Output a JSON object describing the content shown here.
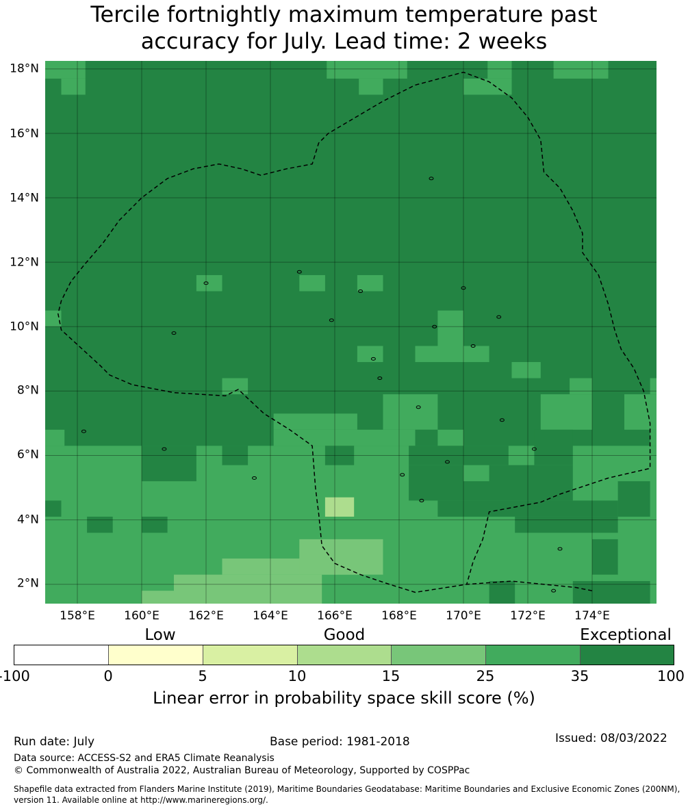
{
  "title_line1": "Tercile fortnightly maximum temperature past",
  "title_line2": "accuracy for July. Lead time: 2 weeks",
  "map": {
    "lat_labels": [
      "18°N",
      "16°N",
      "14°N",
      "12°N",
      "10°N",
      "8°N",
      "6°N",
      "4°N",
      "2°N"
    ],
    "lon_labels": [
      "158°E",
      "160°E",
      "162°E",
      "164°E",
      "166°E",
      "168°E",
      "170°E",
      "172°E",
      "174°E"
    ],
    "extent": {
      "lon_min": 157,
      "lon_max": 176,
      "lat_min": 1.4,
      "lat_max": 18.25
    },
    "grid_lons": [
      158,
      160,
      162,
      164,
      166,
      168,
      170,
      172,
      174
    ],
    "grid_lats": [
      18,
      16,
      14,
      12,
      10,
      8,
      6,
      4,
      2
    ],
    "region_colors": {
      "exceptional": "#238443",
      "35": "#41ab5d",
      "25": "#78c679",
      "15": "#addd8e"
    },
    "boundary_eez": [
      [
        174,
        1.8
      ],
      [
        173.5,
        1.9
      ],
      [
        172.5,
        2.0
      ],
      [
        171.5,
        2.1
      ],
      [
        170.1,
        2.0
      ],
      [
        168.5,
        1.75
      ],
      [
        167.7,
        2.0
      ],
      [
        166.8,
        2.3
      ],
      [
        166.0,
        2.65
      ],
      [
        165.6,
        3.2
      ],
      [
        165.5,
        4.2
      ],
      [
        165.4,
        5.0
      ],
      [
        165.3,
        6.3
      ],
      [
        164.6,
        6.8
      ],
      [
        163.8,
        7.3
      ],
      [
        163.0,
        8.05
      ],
      [
        162.6,
        7.85
      ],
      [
        161.0,
        7.95
      ],
      [
        159.7,
        8.2
      ],
      [
        159.0,
        8.5
      ],
      [
        158.7,
        8.8
      ],
      [
        157.5,
        9.9
      ],
      [
        157.4,
        10.4
      ],
      [
        157.5,
        10.8
      ],
      [
        157.8,
        11.4
      ],
      [
        158.2,
        11.9
      ],
      [
        158.8,
        12.6
      ],
      [
        159.3,
        13.3
      ],
      [
        160.0,
        14.0
      ],
      [
        160.8,
        14.6
      ],
      [
        161.6,
        14.9
      ],
      [
        162.4,
        15.05
      ],
      [
        163.1,
        14.9
      ],
      [
        163.7,
        14.7
      ],
      [
        164.5,
        14.9
      ],
      [
        165.3,
        15.05
      ],
      [
        165.5,
        15.7
      ],
      [
        165.8,
        16.0
      ],
      [
        167.5,
        17.0
      ],
      [
        168.5,
        17.5
      ],
      [
        170.0,
        17.9
      ],
      [
        170.8,
        17.6
      ],
      [
        171.5,
        17.1
      ],
      [
        172.0,
        16.5
      ],
      [
        172.4,
        15.8
      ],
      [
        172.5,
        14.8
      ],
      [
        173.0,
        14.3
      ],
      [
        173.4,
        13.6
      ],
      [
        173.7,
        12.9
      ],
      [
        173.7,
        12.3
      ],
      [
        174.2,
        11.6
      ],
      [
        174.5,
        10.7
      ],
      [
        174.7,
        9.9
      ],
      [
        174.9,
        9.3
      ],
      [
        175.3,
        8.7
      ],
      [
        175.6,
        8.0
      ],
      [
        175.8,
        7.0
      ],
      [
        175.8,
        5.6
      ],
      [
        174.5,
        5.3
      ],
      [
        173.0,
        4.8
      ],
      [
        172.4,
        4.55
      ],
      [
        170.8,
        4.25
      ],
      [
        170.6,
        3.4
      ],
      [
        170.3,
        2.7
      ],
      [
        170.1,
        2.0
      ]
    ],
    "boundary_fsm_east": [
      [
        165.6,
        3.2
      ],
      [
        165.5,
        4.2
      ]
    ]
  },
  "colorbar": {
    "categories": [
      {
        "label": "Low",
        "at": 0.222
      },
      {
        "label": "Good",
        "at": 0.5
      },
      {
        "label": "Exceptional",
        "at": 0.927
      }
    ],
    "segments": [
      {
        "from": "-100",
        "to": "0",
        "color": "#ffffff"
      },
      {
        "from": "0",
        "to": "5",
        "color": "#ffffcc"
      },
      {
        "from": "5",
        "to": "10",
        "color": "#d9f0a3"
      },
      {
        "from": "10",
        "to": "15",
        "color": "#addd8e"
      },
      {
        "from": "15",
        "to": "25",
        "color": "#78c679"
      },
      {
        "from": "25",
        "to": "35",
        "color": "#41ab5d"
      },
      {
        "from": "35",
        "to": "100",
        "color": "#238443"
      }
    ],
    "ticks": [
      "-100",
      "0",
      "5",
      "10",
      "15",
      "25",
      "35",
      "100"
    ],
    "title": "Linear error in probability space skill score (%)"
  },
  "footer": {
    "run_date": "Run date: July",
    "base_period": "Base period: 1981-2018",
    "issued": "Issued: 08/03/2022",
    "data_source": "Data source: ACCESS-S2 and ERA5 Climate Reanalysis",
    "copyright": "© Commonwealth of Australia 2022, Australian Bureau of Meteorology, Supported by COSPPac",
    "shapefile_line1": "Shapefile data extracted from Flanders Marine Institute (2019), Maritime Boundaries Geodatabase: Maritime Boundaries and Exclusive Economic Zones (200NM),",
    "shapefile_line2": "version 11. Available online at http://www.marineregions.org/."
  }
}
